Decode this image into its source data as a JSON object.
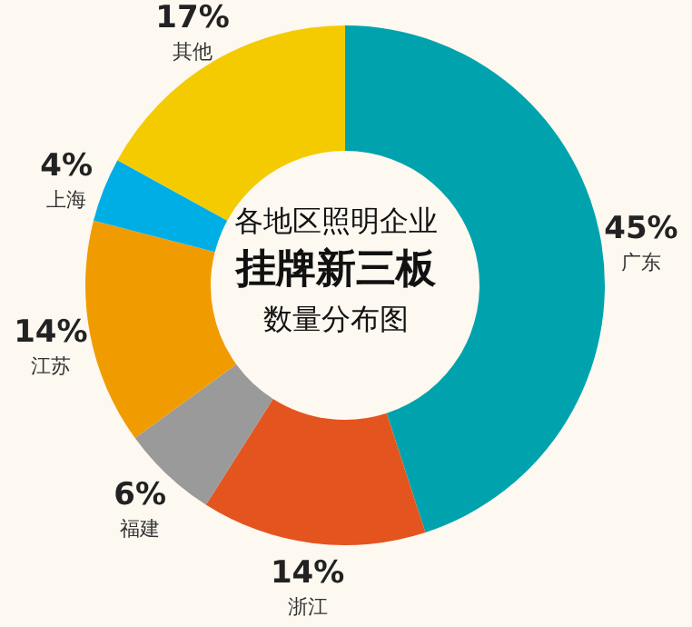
{
  "chart_data": {
    "type": "donut",
    "title": "各地区照明企业挂牌新三板数量分布图",
    "categories": [
      "广东",
      "浙江",
      "福建",
      "江苏",
      "上海",
      "其他"
    ],
    "values": [
      45,
      14,
      6,
      14,
      4,
      17
    ],
    "value_labels": [
      "45%",
      "14%",
      "6%",
      "14%",
      "4%",
      "17%"
    ],
    "colors": [
      "#00a3ad",
      "#e4541f",
      "#9a9a9a",
      "#f09c00",
      "#00aee6",
      "#f4cb00"
    ],
    "legend": false
  }
}
